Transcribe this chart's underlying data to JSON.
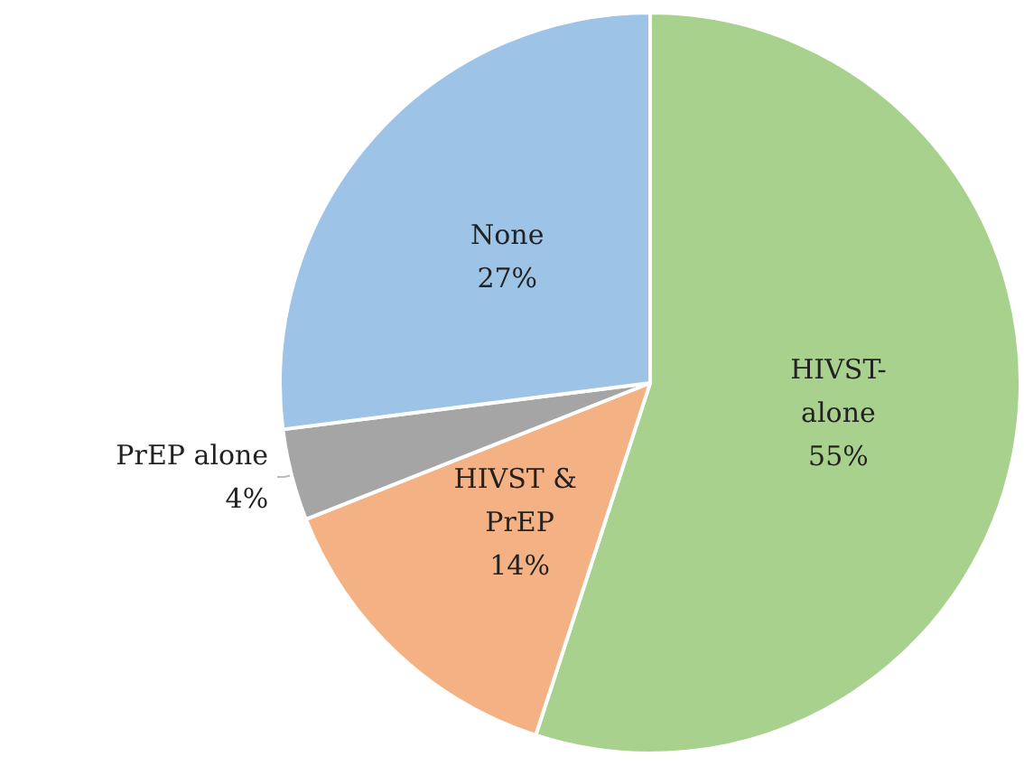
{
  "chart_data": {
    "type": "pie",
    "categories": [
      "HIVST-alone",
      "HIVST & PrEP",
      "PrEP alone",
      "None"
    ],
    "values": [
      55,
      14,
      4,
      27
    ],
    "value_labels": [
      "55%",
      "14%",
      "4%",
      "27%"
    ],
    "colors": [
      "#a9d18e",
      "#f4b183",
      "#a5a5a5",
      "#9dc3e6"
    ],
    "legend": false
  }
}
